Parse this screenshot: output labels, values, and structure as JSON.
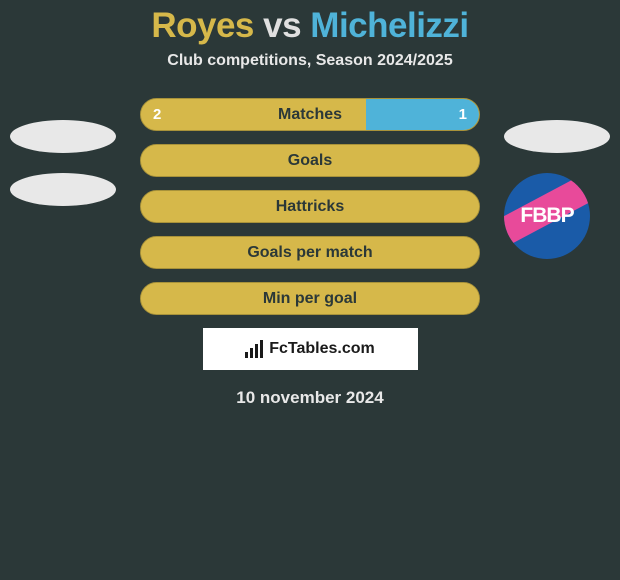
{
  "background_color": "#2b3838",
  "title": {
    "player1": "Royes",
    "vs": "vs",
    "player2": "Michelizzi",
    "player1_color": "#d6b84a",
    "vs_color": "#e0e0e0",
    "player2_color": "#4fb3d9",
    "fontsize": 35
  },
  "subtitle": {
    "text": "Club competitions, Season 2024/2025",
    "color": "#e8e8e8",
    "fontsize": 16
  },
  "stats": [
    {
      "label": "Matches",
      "left_val": "2",
      "right_val": "1",
      "left_pct": 66.7,
      "right_pct": 33.3,
      "show_vals": true
    },
    {
      "label": "Goals",
      "left_val": "",
      "right_val": "",
      "left_pct": 100,
      "right_pct": 0,
      "show_vals": false
    },
    {
      "label": "Hattricks",
      "left_val": "",
      "right_val": "",
      "left_pct": 100,
      "right_pct": 0,
      "show_vals": false
    },
    {
      "label": "Goals per match",
      "left_val": "",
      "right_val": "",
      "left_pct": 100,
      "right_pct": 0,
      "show_vals": false
    },
    {
      "label": "Min per goal",
      "left_val": "",
      "right_val": "",
      "left_pct": 100,
      "right_pct": 0,
      "show_vals": false
    }
  ],
  "bar_style": {
    "track_color": "#d6b84a",
    "left_color": "#d6b84a",
    "right_color": "#4fb3d9",
    "label_color": "#2b3838",
    "label_fontsize": 16,
    "val_color": "#ffffff",
    "val_fontsize": 15,
    "border": "#a8923a"
  },
  "left_avatars": {
    "ellipse_color": "#e8e8e8",
    "ellipses": 2
  },
  "right_avatars": {
    "ellipse_color": "#e8e8e8",
    "badge": {
      "bg": "#1a5ba8",
      "stripe": "#e84a9a",
      "text": "FBBP",
      "text_color": "#ffffff",
      "fontsize": 21
    }
  },
  "watermark": {
    "bg": "#ffffff",
    "text": "FcTables.com",
    "text_color": "#1a1a1a",
    "fontsize": 16,
    "icon_color": "#1a1a1a"
  },
  "date": {
    "text": "10 november 2024",
    "color": "#e8e8e8",
    "fontsize": 17
  }
}
